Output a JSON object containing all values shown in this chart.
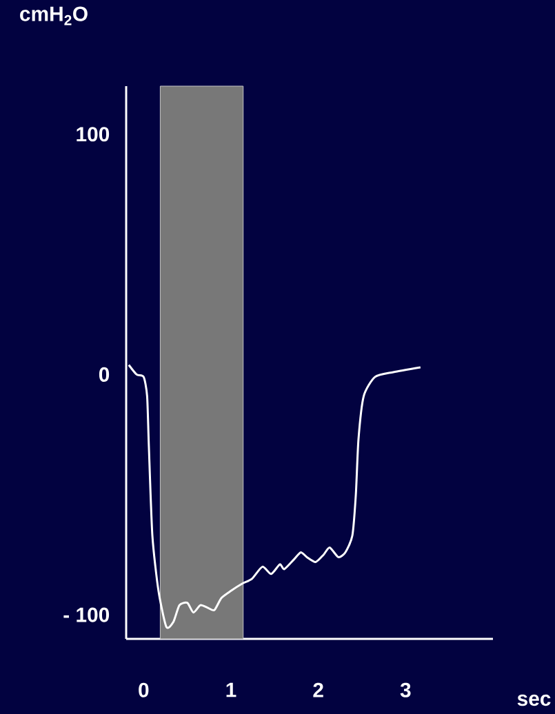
{
  "chart_data": {
    "type": "line",
    "ylabel": "cmH$_{2}$O",
    "xlabel": "sec",
    "xlim": [
      -0.2,
      4.0
    ],
    "ylim": [
      -110,
      120
    ],
    "xticks": [
      0,
      1,
      2,
      3
    ],
    "yticks": [
      {
        "value": -100,
        "label": "- 100"
      },
      0,
      100
    ],
    "grid": false,
    "marker": "none",
    "line_style": "solid",
    "bands": [
      {
        "axis": "x",
        "from": 0.19,
        "to": 1.14,
        "color": "#c8c8c8"
      }
    ],
    "series": [
      {
        "color": "#ffffff",
        "x": [
          -0.17,
          -0.08,
          0,
          0.04,
          0.06,
          0.1,
          0.17,
          0.26,
          0.34,
          0.41,
          0.5,
          0.57,
          0.65,
          0.73,
          0.81,
          0.89,
          1.0,
          1.13,
          1.24,
          1.36,
          1.46,
          1.56,
          1.61,
          1.72,
          1.8,
          1.87,
          1.97,
          2.06,
          2.13,
          2.23,
          2.31,
          2.39,
          2.43,
          2.46,
          2.52,
          2.65,
          2.86,
          3.17
        ],
        "values": [
          4,
          0,
          -1,
          -9,
          -30,
          -67,
          -90,
          -105,
          -103,
          -96,
          -95,
          -99,
          -96,
          -97,
          -98,
          -93,
          -90,
          -87,
          -85,
          -80,
          -83,
          -79,
          -81,
          -77,
          -74,
          -76,
          -78,
          -75,
          -72,
          -76,
          -74,
          -67,
          -50,
          -27,
          -9,
          -1,
          1,
          3
        ]
      }
    ]
  }
}
